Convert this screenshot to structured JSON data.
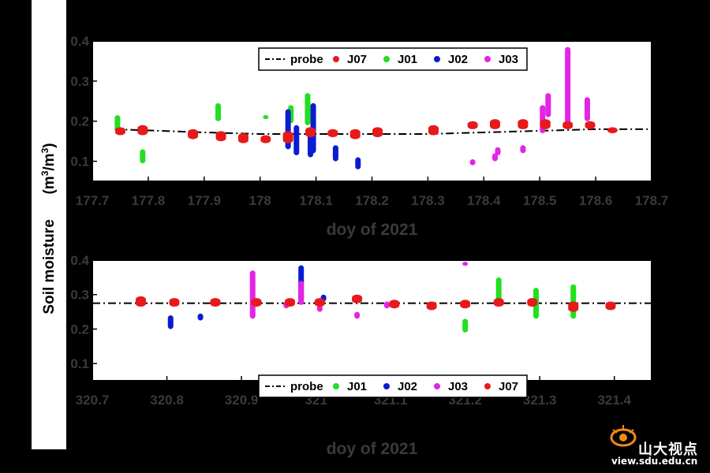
{
  "y_axis_label": {
    "main": "Soil moisture",
    "unit_prefix": "(m",
    "unit_exp1": "3",
    "unit_mid": "/m",
    "unit_exp2": "3",
    "unit_suffix": ")"
  },
  "colors": {
    "probe": "#000000",
    "J07": "#e8191a",
    "J01": "#21e021",
    "J02": "#0a1cd0",
    "J03": "#e424e4"
  },
  "watermark": {
    "text": "山大视点",
    "url": "view.sdu.edu.cn"
  },
  "chart_data": [
    {
      "type": "scatter",
      "xlabel": "doy of 2021",
      "ylabel": "Soil moisture (m3/m3)",
      "xlim": [
        177.7,
        178.7
      ],
      "ylim": [
        0.05,
        0.4
      ],
      "xticks": [
        "177.7",
        "177.8",
        "177.9",
        "178",
        "178.1",
        "178.2",
        "178.3",
        "178.4",
        "178.5",
        "178.6",
        "178.7"
      ],
      "yticks": [
        "0.1",
        "0.2",
        "0.3",
        "0.4"
      ],
      "grid": false,
      "legend_position": "top-center",
      "legend": [
        "probe",
        "J07",
        "J01",
        "J02",
        "J03"
      ],
      "probe": {
        "x": [
          177.74,
          177.9,
          178.0,
          178.1,
          178.2,
          178.3,
          178.4,
          178.5,
          178.6,
          178.7
        ],
        "y": [
          0.18,
          0.172,
          0.168,
          0.168,
          0.168,
          0.168,
          0.172,
          0.176,
          0.18,
          0.18
        ]
      },
      "series": [
        {
          "name": "J07",
          "points": [
            {
              "x": 177.75,
              "ymin": 0.165,
              "ymax": 0.185
            },
            {
              "x": 177.79,
              "ymin": 0.165,
              "ymax": 0.19
            },
            {
              "x": 177.88,
              "ymin": 0.155,
              "ymax": 0.18
            },
            {
              "x": 177.93,
              "ymin": 0.15,
              "ymax": 0.175
            },
            {
              "x": 177.97,
              "ymin": 0.145,
              "ymax": 0.17
            },
            {
              "x": 178.01,
              "ymin": 0.145,
              "ymax": 0.165
            },
            {
              "x": 178.05,
              "ymin": 0.145,
              "ymax": 0.175
            },
            {
              "x": 178.09,
              "ymin": 0.16,
              "ymax": 0.185
            },
            {
              "x": 178.13,
              "ymin": 0.16,
              "ymax": 0.18
            },
            {
              "x": 178.17,
              "ymin": 0.155,
              "ymax": 0.18
            },
            {
              "x": 178.21,
              "ymin": 0.16,
              "ymax": 0.185
            },
            {
              "x": 178.31,
              "ymin": 0.165,
              "ymax": 0.19
            },
            {
              "x": 178.38,
              "ymin": 0.18,
              "ymax": 0.2
            },
            {
              "x": 178.42,
              "ymin": 0.18,
              "ymax": 0.205
            },
            {
              "x": 178.47,
              "ymin": 0.18,
              "ymax": 0.205
            },
            {
              "x": 178.51,
              "ymin": 0.18,
              "ymax": 0.205
            },
            {
              "x": 178.55,
              "ymin": 0.18,
              "ymax": 0.2
            },
            {
              "x": 178.59,
              "ymin": 0.18,
              "ymax": 0.2
            },
            {
              "x": 178.63,
              "ymin": 0.17,
              "ymax": 0.185
            }
          ]
        },
        {
          "name": "J01",
          "points": [
            {
              "x": 177.745,
              "ymin": 0.175,
              "ymax": 0.215
            },
            {
              "x": 177.79,
              "ymin": 0.095,
              "ymax": 0.13
            },
            {
              "x": 177.925,
              "ymin": 0.2,
              "ymax": 0.245
            },
            {
              "x": 178.01,
              "ymin": 0.205,
              "ymax": 0.215
            },
            {
              "x": 178.055,
              "ymin": 0.195,
              "ymax": 0.24
            },
            {
              "x": 178.085,
              "ymin": 0.19,
              "ymax": 0.27
            }
          ]
        },
        {
          "name": "J02",
          "points": [
            {
              "x": 178.05,
              "ymin": 0.13,
              "ymax": 0.23
            },
            {
              "x": 178.065,
              "ymin": 0.115,
              "ymax": 0.19
            },
            {
              "x": 178.095,
              "ymin": 0.12,
              "ymax": 0.245
            },
            {
              "x": 178.09,
              "ymin": 0.11,
              "ymax": 0.17
            },
            {
              "x": 178.135,
              "ymin": 0.1,
              "ymax": 0.14
            },
            {
              "x": 178.175,
              "ymin": 0.08,
              "ymax": 0.11
            }
          ]
        },
        {
          "name": "J03",
          "points": [
            {
              "x": 178.38,
              "ymin": 0.09,
              "ymax": 0.105
            },
            {
              "x": 178.42,
              "ymin": 0.1,
              "ymax": 0.12
            },
            {
              "x": 178.425,
              "ymin": 0.115,
              "ymax": 0.135
            },
            {
              "x": 178.47,
              "ymin": 0.12,
              "ymax": 0.14
            },
            {
              "x": 178.505,
              "ymin": 0.17,
              "ymax": 0.24
            },
            {
              "x": 178.515,
              "ymin": 0.21,
              "ymax": 0.27
            },
            {
              "x": 178.55,
              "ymin": 0.18,
              "ymax": 0.385
            },
            {
              "x": 178.585,
              "ymin": 0.2,
              "ymax": 0.26
            }
          ]
        }
      ]
    },
    {
      "type": "scatter",
      "xlabel": "doy of 2021",
      "ylabel": "Soil moisture (m3/m3)",
      "xlim": [
        320.7,
        321.45
      ],
      "ylim": [
        0.05,
        0.4
      ],
      "xticks": [
        "320.7",
        "320.8",
        "320.9",
        "321",
        "321.1",
        "321.2",
        "321.3",
        "321.4"
      ],
      "yticks": [
        "0.1",
        "0.2",
        "0.3",
        "0.4"
      ],
      "grid": false,
      "legend_position": "bottom-center",
      "legend": [
        "probe",
        "J01",
        "J02",
        "J03",
        "J07"
      ],
      "probe": {
        "x": [
          320.7,
          321.45
        ],
        "y": [
          0.275,
          0.275
        ]
      },
      "series": [
        {
          "name": "J01",
          "points": [
            {
              "x": 321.2,
              "ymin": 0.19,
              "ymax": 0.23
            },
            {
              "x": 321.245,
              "ymin": 0.27,
              "ymax": 0.35
            },
            {
              "x": 321.295,
              "ymin": 0.23,
              "ymax": 0.32
            },
            {
              "x": 321.345,
              "ymin": 0.23,
              "ymax": 0.33
            }
          ]
        },
        {
          "name": "J02",
          "points": [
            {
              "x": 320.805,
              "ymin": 0.2,
              "ymax": 0.24
            },
            {
              "x": 320.845,
              "ymin": 0.225,
              "ymax": 0.245
            },
            {
              "x": 320.98,
              "ymin": 0.28,
              "ymax": 0.385
            },
            {
              "x": 321.01,
              "ymin": 0.28,
              "ymax": 0.3
            }
          ]
        },
        {
          "name": "J03",
          "points": [
            {
              "x": 320.915,
              "ymin": 0.23,
              "ymax": 0.37
            },
            {
              "x": 320.96,
              "ymin": 0.26,
              "ymax": 0.28
            },
            {
              "x": 320.98,
              "ymin": 0.27,
              "ymax": 0.34
            },
            {
              "x": 321.005,
              "ymin": 0.25,
              "ymax": 0.27
            },
            {
              "x": 321.055,
              "ymin": 0.23,
              "ymax": 0.25
            },
            {
              "x": 321.095,
              "ymin": 0.26,
              "ymax": 0.28
            },
            {
              "x": 321.2,
              "ymin": 0.385,
              "ymax": 0.395
            }
          ]
        },
        {
          "name": "J07",
          "points": [
            {
              "x": 320.765,
              "ymin": 0.265,
              "ymax": 0.295
            },
            {
              "x": 320.81,
              "ymin": 0.265,
              "ymax": 0.29
            },
            {
              "x": 320.865,
              "ymin": 0.265,
              "ymax": 0.29
            },
            {
              "x": 320.92,
              "ymin": 0.265,
              "ymax": 0.29
            },
            {
              "x": 320.965,
              "ymin": 0.265,
              "ymax": 0.29
            },
            {
              "x": 321.005,
              "ymin": 0.265,
              "ymax": 0.29
            },
            {
              "x": 321.055,
              "ymin": 0.275,
              "ymax": 0.3
            },
            {
              "x": 321.105,
              "ymin": 0.26,
              "ymax": 0.285
            },
            {
              "x": 321.155,
              "ymin": 0.255,
              "ymax": 0.28
            },
            {
              "x": 321.2,
              "ymin": 0.26,
              "ymax": 0.285
            },
            {
              "x": 321.245,
              "ymin": 0.265,
              "ymax": 0.29
            },
            {
              "x": 321.29,
              "ymin": 0.265,
              "ymax": 0.29
            },
            {
              "x": 321.345,
              "ymin": 0.25,
              "ymax": 0.28
            },
            {
              "x": 321.395,
              "ymin": 0.255,
              "ymax": 0.28
            }
          ]
        }
      ]
    }
  ]
}
